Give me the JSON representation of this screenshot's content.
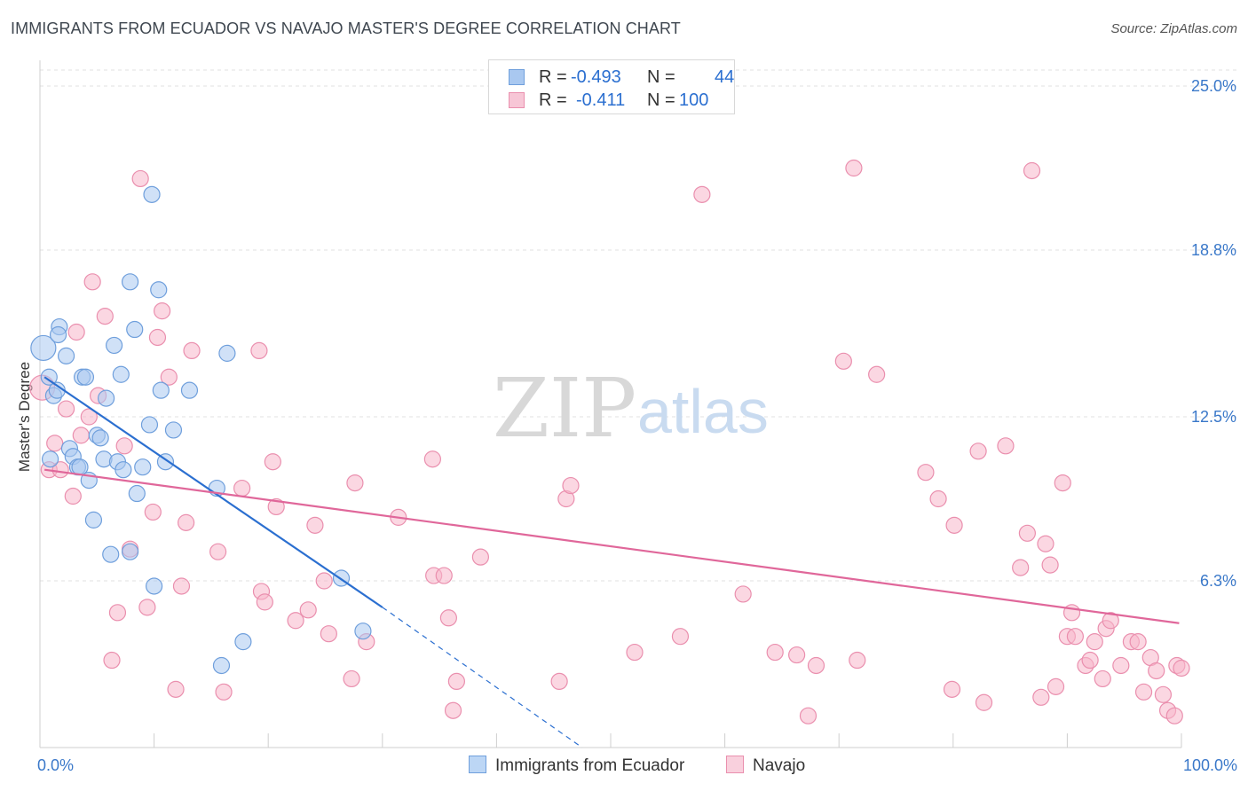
{
  "header": {
    "title": "IMMIGRANTS FROM ECUADOR VS NAVAJO MASTER'S DEGREE CORRELATION CHART",
    "source": "Source: ZipAtlas.com"
  },
  "watermark": {
    "zip": "ZIP",
    "atlas": "atlas"
  },
  "legend": {
    "rows": [
      {
        "r_label": "R =",
        "r_value": "-0.493",
        "n_label": "N =",
        "n_value": "44"
      },
      {
        "r_label": "R =",
        "r_value": "-0.411",
        "n_label": "N =",
        "n_value": "100"
      }
    ]
  },
  "bottom_legend": {
    "series1": "Immigrants from Ecuador",
    "series2": "Navajo"
  },
  "colors": {
    "blue_fill": "#a9c8f0",
    "blue_stroke": "#6f9fdc",
    "blue_line": "#2b6fd0",
    "pink_fill": "#f7b7cb",
    "pink_stroke": "#ea8fae",
    "pink_line": "#e0679a",
    "tick_text": "#3a78c9",
    "grid": "#e0e0e0"
  },
  "chart_data": {
    "type": "scatter",
    "title": "IMMIGRANTS FROM ECUADOR VS NAVAJO MASTER'S DEGREE CORRELATION CHART",
    "xlabel": "",
    "ylabel": "Master's Degree",
    "xlim": [
      0,
      100
    ],
    "ylim": [
      0,
      25
    ],
    "x_tick_labels": [
      "0.0%",
      "100.0%"
    ],
    "y_ticks": [
      6.3,
      12.5,
      18.8,
      25.0
    ],
    "y_tick_labels": [
      "6.3%",
      "12.5%",
      "18.8%",
      "25.0%"
    ],
    "series": [
      {
        "name": "Immigrants from Ecuador",
        "r": -0.493,
        "n": 44,
        "trend": {
          "x0": 0.4,
          "y0": 14.0,
          "x1": 30,
          "y1": 5.3,
          "dash_to_x": 47.5,
          "dash_to_y": 0.0
        },
        "points": [
          {
            "x": 0.3,
            "y": 15.1,
            "big": true
          },
          {
            "x": 0.8,
            "y": 14.0
          },
          {
            "x": 1.2,
            "y": 13.3
          },
          {
            "x": 1.5,
            "y": 13.5
          },
          {
            "x": 1.7,
            "y": 15.9
          },
          {
            "x": 1.6,
            "y": 15.6
          },
          {
            "x": 2.3,
            "y": 14.8
          },
          {
            "x": 2.6,
            "y": 11.3
          },
          {
            "x": 2.9,
            "y": 11.0
          },
          {
            "x": 3.3,
            "y": 10.6
          },
          {
            "x": 3.5,
            "y": 10.6
          },
          {
            "x": 3.7,
            "y": 14.0
          },
          {
            "x": 4.0,
            "y": 14.0
          },
          {
            "x": 4.3,
            "y": 10.1
          },
          {
            "x": 4.7,
            "y": 8.6
          },
          {
            "x": 5.0,
            "y": 11.8
          },
          {
            "x": 5.3,
            "y": 11.7
          },
          {
            "x": 5.6,
            "y": 10.9
          },
          {
            "x": 5.8,
            "y": 13.2
          },
          {
            "x": 6.2,
            "y": 7.3
          },
          {
            "x": 6.5,
            "y": 15.2
          },
          {
            "x": 6.8,
            "y": 10.8
          },
          {
            "x": 7.1,
            "y": 14.1
          },
          {
            "x": 7.3,
            "y": 10.5
          },
          {
            "x": 7.9,
            "y": 7.4
          },
          {
            "x": 7.9,
            "y": 17.6
          },
          {
            "x": 8.3,
            "y": 15.8
          },
          {
            "x": 8.5,
            "y": 9.6
          },
          {
            "x": 9.0,
            "y": 10.6
          },
          {
            "x": 9.6,
            "y": 12.2
          },
          {
            "x": 9.8,
            "y": 20.9
          },
          {
            "x": 10.0,
            "y": 6.1
          },
          {
            "x": 10.4,
            "y": 17.3
          },
          {
            "x": 10.6,
            "y": 13.5
          },
          {
            "x": 11.0,
            "y": 10.8
          },
          {
            "x": 11.7,
            "y": 12.0
          },
          {
            "x": 13.1,
            "y": 13.5
          },
          {
            "x": 15.5,
            "y": 9.8
          },
          {
            "x": 15.9,
            "y": 3.1
          },
          {
            "x": 16.4,
            "y": 14.9
          },
          {
            "x": 17.8,
            "y": 4.0
          },
          {
            "x": 26.4,
            "y": 6.4
          },
          {
            "x": 28.3,
            "y": 4.4
          },
          {
            "x": 0.9,
            "y": 10.9
          }
        ]
      },
      {
        "name": "Navajo",
        "r": -0.411,
        "n": 100,
        "trend": {
          "x0": 0.4,
          "y0": 10.5,
          "x1": 99.8,
          "y1": 4.7
        },
        "points": [
          {
            "x": 0.2,
            "y": 13.6,
            "big": true
          },
          {
            "x": 0.8,
            "y": 10.5
          },
          {
            "x": 1.3,
            "y": 11.5
          },
          {
            "x": 1.8,
            "y": 10.5
          },
          {
            "x": 2.3,
            "y": 12.8
          },
          {
            "x": 2.9,
            "y": 9.5
          },
          {
            "x": 3.2,
            "y": 15.7
          },
          {
            "x": 3.6,
            "y": 11.8
          },
          {
            "x": 4.3,
            "y": 12.5
          },
          {
            "x": 4.6,
            "y": 17.6
          },
          {
            "x": 5.1,
            "y": 13.3
          },
          {
            "x": 5.7,
            "y": 16.3
          },
          {
            "x": 6.3,
            "y": 3.3
          },
          {
            "x": 6.8,
            "y": 5.1
          },
          {
            "x": 7.4,
            "y": 11.4
          },
          {
            "x": 7.9,
            "y": 7.5
          },
          {
            "x": 8.8,
            "y": 21.5
          },
          {
            "x": 9.4,
            "y": 5.3
          },
          {
            "x": 9.9,
            "y": 8.9
          },
          {
            "x": 10.3,
            "y": 15.5
          },
          {
            "x": 10.7,
            "y": 16.5
          },
          {
            "x": 11.3,
            "y": 14.0
          },
          {
            "x": 11.9,
            "y": 2.2
          },
          {
            "x": 12.4,
            "y": 6.1
          },
          {
            "x": 12.8,
            "y": 8.5
          },
          {
            "x": 13.3,
            "y": 15.0
          },
          {
            "x": 15.6,
            "y": 7.4
          },
          {
            "x": 16.1,
            "y": 2.1
          },
          {
            "x": 17.7,
            "y": 9.8
          },
          {
            "x": 19.2,
            "y": 15.0
          },
          {
            "x": 19.4,
            "y": 5.9
          },
          {
            "x": 19.7,
            "y": 5.5
          },
          {
            "x": 20.4,
            "y": 10.8
          },
          {
            "x": 20.7,
            "y": 9.1
          },
          {
            "x": 22.4,
            "y": 4.8
          },
          {
            "x": 23.5,
            "y": 5.2
          },
          {
            "x": 24.1,
            "y": 8.4
          },
          {
            "x": 24.9,
            "y": 6.3
          },
          {
            "x": 25.3,
            "y": 4.3
          },
          {
            "x": 27.3,
            "y": 2.6
          },
          {
            "x": 27.6,
            "y": 10.0
          },
          {
            "x": 28.6,
            "y": 4.0
          },
          {
            "x": 31.4,
            "y": 8.7
          },
          {
            "x": 34.4,
            "y": 10.9
          },
          {
            "x": 34.5,
            "y": 6.5
          },
          {
            "x": 35.4,
            "y": 6.5
          },
          {
            "x": 35.8,
            "y": 4.9
          },
          {
            "x": 36.2,
            "y": 1.4
          },
          {
            "x": 36.5,
            "y": 2.5
          },
          {
            "x": 38.6,
            "y": 7.2
          },
          {
            "x": 45.5,
            "y": 2.5
          },
          {
            "x": 46.1,
            "y": 9.4
          },
          {
            "x": 46.5,
            "y": 9.9
          },
          {
            "x": 52.1,
            "y": 3.6
          },
          {
            "x": 56.1,
            "y": 4.2
          },
          {
            "x": 58.0,
            "y": 20.9
          },
          {
            "x": 61.6,
            "y": 5.8
          },
          {
            "x": 64.4,
            "y": 3.6
          },
          {
            "x": 66.3,
            "y": 3.5
          },
          {
            "x": 67.3,
            "y": 1.2
          },
          {
            "x": 68.0,
            "y": 3.1
          },
          {
            "x": 70.4,
            "y": 14.6
          },
          {
            "x": 71.3,
            "y": 21.9
          },
          {
            "x": 71.6,
            "y": 3.3
          },
          {
            "x": 73.3,
            "y": 14.1
          },
          {
            "x": 77.6,
            "y": 10.4
          },
          {
            "x": 78.7,
            "y": 9.4
          },
          {
            "x": 79.9,
            "y": 2.2
          },
          {
            "x": 80.1,
            "y": 8.4
          },
          {
            "x": 82.2,
            "y": 11.2
          },
          {
            "x": 82.7,
            "y": 1.7
          },
          {
            "x": 84.6,
            "y": 11.4
          },
          {
            "x": 85.9,
            "y": 6.8
          },
          {
            "x": 86.5,
            "y": 8.1
          },
          {
            "x": 86.9,
            "y": 21.8
          },
          {
            "x": 87.7,
            "y": 1.9
          },
          {
            "x": 88.1,
            "y": 7.7
          },
          {
            "x": 88.5,
            "y": 6.9
          },
          {
            "x": 89.0,
            "y": 2.3
          },
          {
            "x": 89.6,
            "y": 10.0
          },
          {
            "x": 90.0,
            "y": 4.2
          },
          {
            "x": 90.4,
            "y": 5.1
          },
          {
            "x": 90.7,
            "y": 4.2
          },
          {
            "x": 91.6,
            "y": 3.1
          },
          {
            "x": 92.0,
            "y": 3.3
          },
          {
            "x": 92.4,
            "y": 4.0
          },
          {
            "x": 93.1,
            "y": 2.6
          },
          {
            "x": 93.4,
            "y": 4.5
          },
          {
            "x": 93.8,
            "y": 4.8
          },
          {
            "x": 94.7,
            "y": 3.1
          },
          {
            "x": 95.6,
            "y": 4.0
          },
          {
            "x": 96.2,
            "y": 4.0
          },
          {
            "x": 96.7,
            "y": 2.1
          },
          {
            "x": 97.3,
            "y": 3.4
          },
          {
            "x": 97.8,
            "y": 2.9
          },
          {
            "x": 98.4,
            "y": 2.0
          },
          {
            "x": 98.8,
            "y": 1.4
          },
          {
            "x": 99.4,
            "y": 1.2
          },
          {
            "x": 99.6,
            "y": 3.1
          },
          {
            "x": 100.0,
            "y": 3.0
          }
        ]
      }
    ]
  }
}
